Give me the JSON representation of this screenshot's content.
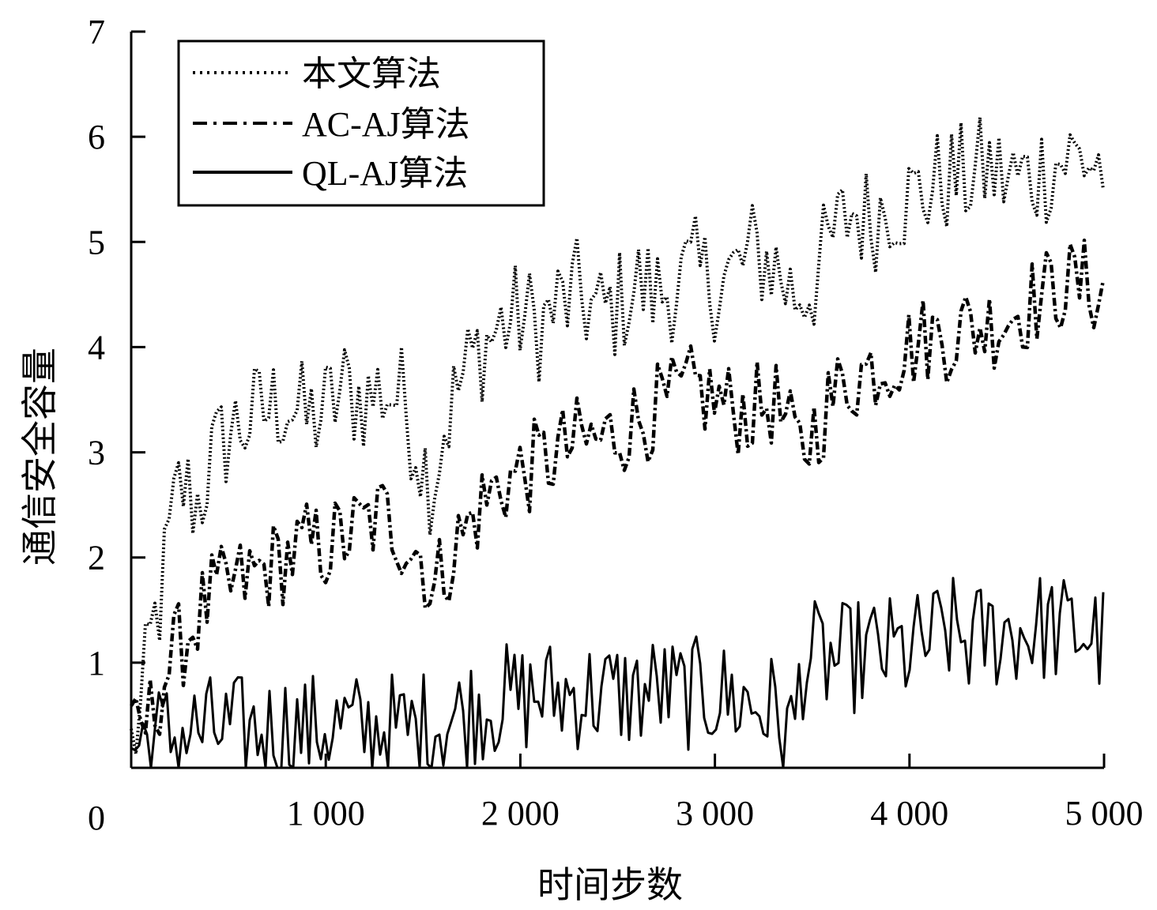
{
  "chart_data": {
    "type": "line",
    "xlabel": "时间步数",
    "ylabel": "通信安全容量",
    "xlim": [
      0,
      5000
    ],
    "ylim": [
      0,
      7
    ],
    "x_ticks": [
      {
        "value": 1000,
        "label": "1 000"
      },
      {
        "value": 2000,
        "label": "2 000"
      },
      {
        "value": 3000,
        "label": "3 000"
      },
      {
        "value": 4000,
        "label": "4 000"
      },
      {
        "value": 5000,
        "label": "5 000"
      }
    ],
    "y_ticks": [
      {
        "value": 0,
        "label": "0"
      },
      {
        "value": 1,
        "label": "1"
      },
      {
        "value": 2,
        "label": "2"
      },
      {
        "value": 3,
        "label": "3"
      },
      {
        "value": 4,
        "label": "4"
      },
      {
        "value": 5,
        "label": "5"
      },
      {
        "value": 6,
        "label": "6"
      },
      {
        "value": 7,
        "label": "7"
      }
    ],
    "grid": false,
    "legend_position": "top-left",
    "series": [
      {
        "name": "本文算法",
        "style": "dotted",
        "x": [
          0,
          50,
          100,
          150,
          200,
          250,
          300,
          350,
          400,
          450,
          500,
          600,
          700,
          800,
          900,
          1000,
          1100,
          1200,
          1300,
          1400,
          1500,
          1550,
          1600,
          1700,
          1800,
          1900,
          2000,
          2100,
          2200,
          2300,
          2400,
          2500,
          2600,
          2700,
          2800,
          2900,
          3000,
          3100,
          3200,
          3300,
          3400,
          3500,
          3600,
          3700,
          3800,
          3900,
          4000,
          4100,
          4200,
          4300,
          4400,
          4500,
          4600,
          4700,
          4800,
          4900,
          5000
        ],
        "values": [
          0.2,
          0.5,
          1.2,
          1.6,
          2.2,
          2.7,
          2.6,
          2.5,
          2.9,
          3.0,
          3.2,
          3.3,
          3.4,
          3.5,
          3.3,
          3.4,
          3.6,
          3.5,
          3.6,
          3.5,
          2.9,
          2.7,
          3.2,
          3.7,
          4.0,
          4.2,
          4.3,
          4.2,
          4.4,
          4.5,
          4.3,
          4.4,
          4.6,
          4.5,
          4.6,
          4.7,
          4.6,
          4.7,
          4.9,
          4.8,
          4.5,
          4.6,
          5.0,
          5.3,
          5.2,
          5.4,
          5.4,
          5.5,
          5.6,
          5.6,
          5.7,
          5.6,
          5.6,
          5.7,
          5.8,
          5.8,
          5.7
        ]
      },
      {
        "name": "AC-AJ算法",
        "style": "dash-dot",
        "x": [
          0,
          100,
          200,
          300,
          400,
          500,
          600,
          700,
          800,
          900,
          1000,
          1100,
          1200,
          1300,
          1400,
          1500,
          1550,
          1600,
          1700,
          1800,
          1900,
          2000,
          2100,
          2200,
          2300,
          2400,
          2500,
          2600,
          2700,
          2800,
          2900,
          3000,
          3100,
          3200,
          3300,
          3400,
          3450,
          3500,
          3600,
          3700,
          3800,
          3900,
          4000,
          4100,
          4200,
          4300,
          4400,
          4500,
          4600,
          4700,
          4800,
          4900,
          5000
        ],
        "values": [
          0.2,
          0.5,
          1.0,
          1.3,
          1.6,
          1.7,
          1.8,
          1.9,
          2.0,
          2.1,
          2.1,
          2.2,
          2.3,
          2.4,
          2.2,
          2.0,
          1.6,
          1.9,
          2.2,
          2.5,
          2.7,
          2.8,
          2.9,
          3.0,
          3.1,
          3.1,
          3.2,
          3.3,
          3.4,
          3.5,
          3.6,
          3.5,
          3.4,
          3.4,
          3.5,
          3.1,
          3.0,
          3.2,
          3.5,
          3.7,
          3.8,
          3.9,
          4.0,
          4.1,
          4.1,
          4.2,
          4.2,
          4.3,
          4.4,
          4.5,
          4.6,
          4.6,
          4.5
        ]
      },
      {
        "name": "QL-AJ算法",
        "style": "solid",
        "x": [
          0,
          100,
          200,
          300,
          400,
          500,
          600,
          700,
          800,
          900,
          1000,
          1100,
          1200,
          1300,
          1400,
          1500,
          1600,
          1700,
          1800,
          1900,
          2000,
          2100,
          2200,
          2300,
          2400,
          2500,
          2600,
          2700,
          2800,
          2900,
          3000,
          3100,
          3200,
          3300,
          3400,
          3450,
          3500,
          3600,
          3700,
          3800,
          3900,
          4000,
          4100,
          4200,
          4300,
          4400,
          4500,
          4600,
          4700,
          4800,
          4900,
          5000
        ],
        "values": [
          0.2,
          0.3,
          0.3,
          0.35,
          0.35,
          0.35,
          0.35,
          0.35,
          0.4,
          0.35,
          0.4,
          0.4,
          0.35,
          0.4,
          0.35,
          0.4,
          0.45,
          0.5,
          0.6,
          0.65,
          0.65,
          0.7,
          0.7,
          0.7,
          0.7,
          0.7,
          0.7,
          0.75,
          0.7,
          0.7,
          0.7,
          0.65,
          0.6,
          0.55,
          0.3,
          1.0,
          1.05,
          1.0,
          1.05,
          1.1,
          1.1,
          1.1,
          1.2,
          1.3,
          1.2,
          1.25,
          1.3,
          1.3,
          1.35,
          1.3,
          1.3,
          1.2
        ]
      }
    ]
  }
}
